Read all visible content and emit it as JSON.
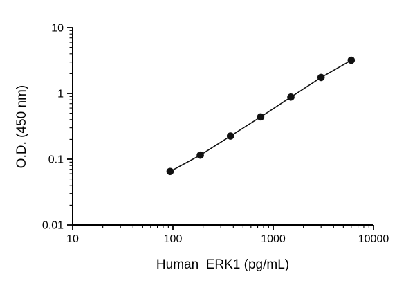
{
  "chart_data": {
    "type": "scatter",
    "x": [
      93.75,
      187.5,
      375,
      750,
      1500,
      3000,
      6000
    ],
    "y": [
      0.065,
      0.115,
      0.225,
      0.44,
      0.88,
      1.75,
      3.2
    ],
    "xlabel": "Human  ERK1 (pg/mL)",
    "ylabel": "O.D. (450 nm)",
    "xscale": "log",
    "yscale": "log",
    "xlim": [
      10,
      10000
    ],
    "ylim": [
      0.01,
      10
    ],
    "x_ticks": [
      10,
      100,
      1000,
      10000
    ],
    "x_tick_labels": [
      "10",
      "100",
      "1000",
      "10000"
    ],
    "y_ticks": [
      0.01,
      0.1,
      1,
      10
    ],
    "y_tick_labels": [
      "0.01",
      "0.1",
      "1",
      "10"
    ],
    "line": true,
    "grid": false,
    "legend": false,
    "marker": "circle",
    "marker_color": "#111111",
    "line_color": "#111111",
    "axis_color": "#000000",
    "background_color": "#ffffff"
  }
}
